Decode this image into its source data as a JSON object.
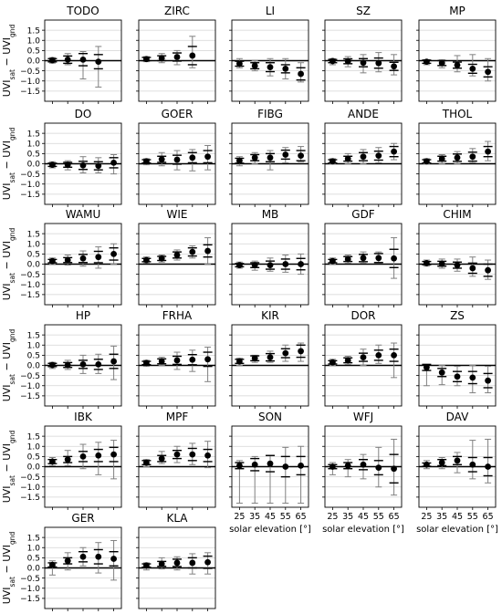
{
  "figure": {
    "ylabel_main": "UVI",
    "ylabel_sub1": "sat",
    "ylabel_mid": " − UVI",
    "ylabel_sub2": "gnd",
    "xlabel": "solar elevation [°]"
  },
  "chart_data": {
    "type": "scatter",
    "x": [
      25,
      35,
      45,
      55,
      65
    ],
    "x_ticks": [
      "25",
      "35",
      "45",
      "55",
      "65"
    ],
    "ylim": [
      -2,
      2
    ],
    "y_ticks": [
      1.5,
      1.0,
      0.5,
      0.0,
      -0.5,
      -1.0,
      -1.5
    ],
    "y_tick_labels": [
      "1.5",
      "1.0",
      "0.5",
      "0.0",
      "−0.5",
      "−1.0",
      "−1.5"
    ],
    "grid": "horizontal",
    "panels": [
      {
        "name": "TODO",
        "mean": [
          0.02,
          0.05,
          0.05,
          -0.05,
          null
        ],
        "std": [
          0.08,
          0.18,
          0.3,
          0.35,
          null
        ],
        "range": [
          [
            -0.12,
            0.15
          ],
          [
            -0.2,
            0.35
          ],
          [
            -0.9,
            0.45
          ],
          [
            -1.3,
            0.7
          ],
          null
        ]
      },
      {
        "name": "ZIRC",
        "mean": [
          0.08,
          0.12,
          0.18,
          0.25,
          null
        ],
        "std": [
          0.08,
          0.12,
          0.2,
          0.45,
          null
        ],
        "range": [
          [
            -0.05,
            0.2
          ],
          [
            -0.1,
            0.35
          ],
          [
            -0.2,
            0.5
          ],
          [
            -0.35,
            1.2
          ],
          null
        ]
      },
      {
        "name": "LI",
        "mean": [
          -0.15,
          -0.25,
          -0.32,
          -0.4,
          -0.65
        ],
        "std": [
          0.12,
          0.15,
          0.22,
          0.2,
          0.3
        ],
        "range": [
          [
            -0.35,
            0.1
          ],
          [
            -0.5,
            0.0
          ],
          [
            -0.75,
            0.1
          ],
          [
            -0.9,
            0.1
          ],
          [
            -1.05,
            -0.1
          ]
        ]
      },
      {
        "name": "SZ",
        "mean": [
          -0.02,
          -0.03,
          -0.1,
          -0.12,
          -0.28
        ],
        "std": [
          0.08,
          0.12,
          0.2,
          0.25,
          0.2
        ],
        "range": [
          [
            -0.2,
            0.1
          ],
          [
            -0.3,
            0.2
          ],
          [
            -0.6,
            0.3
          ],
          [
            -0.55,
            0.4
          ],
          [
            -0.7,
            0.3
          ]
        ]
      },
      {
        "name": "MP",
        "mean": [
          -0.05,
          -0.12,
          -0.22,
          -0.4,
          -0.55
        ],
        "std": [
          0.08,
          0.12,
          0.15,
          0.22,
          0.25
        ],
        "range": [
          [
            -0.2,
            0.05
          ],
          [
            -0.35,
            0.05
          ],
          [
            -0.55,
            0.25
          ],
          [
            -0.75,
            0.3
          ],
          [
            -1.0,
            0.1
          ]
        ]
      },
      {
        "name": "DO",
        "mean": [
          -0.05,
          -0.05,
          -0.08,
          -0.1,
          0.05
        ],
        "std": [
          0.08,
          0.12,
          0.2,
          0.2,
          0.25
        ],
        "range": [
          [
            -0.2,
            0.1
          ],
          [
            -0.3,
            0.15
          ],
          [
            -0.45,
            0.35
          ],
          [
            -0.45,
            0.3
          ],
          [
            -0.5,
            0.45
          ]
        ]
      },
      {
        "name": "GOER",
        "mean": [
          0.12,
          0.22,
          0.2,
          0.3,
          0.35
        ],
        "std": [
          0.08,
          0.15,
          0.22,
          0.25,
          0.3
        ],
        "range": [
          [
            -0.05,
            0.25
          ],
          [
            -0.1,
            0.55
          ],
          [
            -0.3,
            0.65
          ],
          [
            -0.35,
            0.7
          ],
          [
            -0.3,
            0.9
          ]
        ]
      },
      {
        "name": "FIBG",
        "mean": [
          0.15,
          0.3,
          0.3,
          0.45,
          0.4
        ],
        "std": [
          0.12,
          0.15,
          0.2,
          0.22,
          0.25
        ],
        "range": [
          [
            -0.1,
            0.35
          ],
          [
            0.0,
            0.55
          ],
          [
            -0.3,
            0.65
          ],
          [
            0.05,
            0.8
          ],
          [
            0.1,
            0.85
          ]
        ]
      },
      {
        "name": "ANDE",
        "mean": [
          0.12,
          0.25,
          0.35,
          0.4,
          0.6
        ],
        "std": [
          0.08,
          0.12,
          0.2,
          0.22,
          0.25
        ],
        "range": [
          [
            0.0,
            0.25
          ],
          [
            0.0,
            0.5
          ],
          [
            0.0,
            0.7
          ],
          [
            0.05,
            0.8
          ],
          [
            0.2,
            1.0
          ]
        ]
      },
      {
        "name": "THOL",
        "mean": [
          0.12,
          0.25,
          0.3,
          0.35,
          0.6
        ],
        "std": [
          0.08,
          0.12,
          0.18,
          0.22,
          0.25
        ],
        "range": [
          [
            0.0,
            0.25
          ],
          [
            0.0,
            0.45
          ],
          [
            0.0,
            0.6
          ],
          [
            0.05,
            0.75
          ],
          [
            0.15,
            1.1
          ]
        ]
      },
      {
        "name": "WAMU",
        "mean": [
          0.15,
          0.2,
          0.28,
          0.35,
          0.5
        ],
        "std": [
          0.08,
          0.12,
          0.2,
          0.28,
          0.3
        ],
        "range": [
          [
            0.0,
            0.3
          ],
          [
            -0.05,
            0.45
          ],
          [
            -0.1,
            0.65
          ],
          [
            -0.2,
            0.85
          ],
          [
            0.0,
            1.0
          ]
        ]
      },
      {
        "name": "WIE",
        "mean": [
          0.2,
          0.28,
          0.45,
          0.6,
          0.65
        ],
        "std": [
          0.08,
          0.1,
          0.15,
          0.2,
          0.3
        ],
        "range": [
          [
            0.05,
            0.35
          ],
          [
            0.1,
            0.45
          ],
          [
            0.2,
            0.7
          ],
          [
            0.3,
            0.9
          ],
          [
            0.0,
            1.3
          ]
        ]
      },
      {
        "name": "MB",
        "mean": [
          -0.05,
          -0.05,
          -0.05,
          0.0,
          0.0
        ],
        "std": [
          0.08,
          0.12,
          0.2,
          0.25,
          0.28
        ],
        "range": [
          [
            -0.2,
            0.1
          ],
          [
            -0.3,
            0.15
          ],
          [
            -0.35,
            0.3
          ],
          [
            -0.4,
            0.45
          ],
          [
            -0.5,
            0.5
          ]
        ]
      },
      {
        "name": "GDF",
        "mean": [
          0.15,
          0.25,
          0.3,
          0.3,
          0.28
        ],
        "std": [
          0.08,
          0.12,
          0.18,
          0.22,
          0.45
        ],
        "range": [
          [
            0.0,
            0.3
          ],
          [
            0.05,
            0.45
          ],
          [
            0.05,
            0.6
          ],
          [
            0.05,
            0.6
          ],
          [
            -0.7,
            1.3
          ]
        ]
      },
      {
        "name": "CHIM",
        "mean": [
          0.05,
          0.02,
          -0.05,
          -0.2,
          -0.3
        ],
        "std": [
          0.08,
          0.12,
          0.15,
          0.25,
          0.3
        ],
        "range": [
          [
            -0.1,
            0.2
          ],
          [
            -0.2,
            0.25
          ],
          [
            -0.35,
            0.25
          ],
          [
            -0.6,
            0.35
          ],
          [
            -0.75,
            0.2
          ]
        ]
      },
      {
        "name": "HP",
        "mean": [
          0.02,
          0.02,
          0.05,
          0.05,
          0.2
        ],
        "std": [
          0.08,
          0.12,
          0.2,
          0.25,
          0.35
        ],
        "range": [
          [
            -0.15,
            0.15
          ],
          [
            -0.2,
            0.25
          ],
          [
            -0.4,
            0.5
          ],
          [
            -0.4,
            0.55
          ],
          [
            -0.7,
            0.95
          ]
        ]
      },
      {
        "name": "FRHA",
        "mean": [
          0.12,
          0.2,
          0.25,
          0.28,
          0.3
        ],
        "std": [
          0.08,
          0.12,
          0.2,
          0.25,
          0.35
        ],
        "range": [
          [
            -0.05,
            0.25
          ],
          [
            0.0,
            0.4
          ],
          [
            -0.2,
            0.65
          ],
          [
            -0.3,
            0.75
          ],
          [
            -0.8,
            0.9
          ]
        ]
      },
      {
        "name": "KIR",
        "mean": [
          0.2,
          0.35,
          0.4,
          0.6,
          0.7
        ],
        "std": [
          0.1,
          0.12,
          0.18,
          0.22,
          0.3
        ],
        "range": [
          [
            0.0,
            0.35
          ],
          [
            0.15,
            0.5
          ],
          [
            0.15,
            0.7
          ],
          [
            0.2,
            1.0
          ],
          [
            0.2,
            1.1
          ]
        ]
      },
      {
        "name": "DOR",
        "mean": [
          0.15,
          0.25,
          0.4,
          0.5,
          0.5
        ],
        "std": [
          0.08,
          0.12,
          0.2,
          0.25,
          0.3
        ],
        "range": [
          [
            0.0,
            0.3
          ],
          [
            0.05,
            0.45
          ],
          [
            0.0,
            0.8
          ],
          [
            0.1,
            1.0
          ],
          [
            -0.6,
            1.1
          ]
        ]
      },
      {
        "name": "ZS",
        "mean": [
          -0.1,
          -0.35,
          -0.55,
          -0.6,
          -0.75
        ],
        "std": [
          0.15,
          0.2,
          0.25,
          0.3,
          0.35
        ],
        "range": [
          [
            -1.0,
            0.05
          ],
          [
            -0.95,
            0.0
          ],
          [
            -1.0,
            -0.05
          ],
          [
            -1.35,
            0.0
          ],
          [
            -1.35,
            -0.05
          ]
        ]
      },
      {
        "name": "IBK",
        "mean": [
          0.25,
          0.35,
          0.5,
          0.55,
          0.6
        ],
        "std": [
          0.1,
          0.15,
          0.25,
          0.3,
          0.35
        ],
        "range": [
          [
            0.05,
            0.45
          ],
          [
            0.05,
            0.8
          ],
          [
            -0.1,
            1.1
          ],
          [
            -0.4,
            1.2
          ],
          [
            -0.6,
            1.3
          ]
        ]
      },
      {
        "name": "MPF",
        "mean": [
          0.2,
          0.4,
          0.6,
          0.6,
          0.55
        ],
        "std": [
          0.1,
          0.15,
          0.2,
          0.3,
          0.3
        ],
        "range": [
          [
            0.0,
            0.35
          ],
          [
            0.15,
            0.75
          ],
          [
            0.2,
            1.0
          ],
          [
            0.1,
            1.15
          ],
          [
            -0.05,
            1.25
          ]
        ]
      },
      {
        "name": "SON",
        "mean": [
          0.05,
          0.1,
          0.15,
          0.0,
          0.05
        ],
        "std": [
          0.15,
          0.3,
          0.4,
          0.5,
          0.45
        ],
        "range": [
          [
            -1.8,
            0.3
          ],
          [
            -1.8,
            0.5
          ],
          [
            -1.8,
            0.55
          ],
          [
            -1.8,
            0.95
          ],
          [
            -1.8,
            1.0
          ]
        ]
      },
      {
        "name": "WFJ",
        "mean": [
          0.0,
          0.05,
          0.1,
          -0.05,
          -0.1
        ],
        "std": [
          0.1,
          0.15,
          0.25,
          0.35,
          0.7
        ],
        "range": [
          [
            -0.4,
            0.2
          ],
          [
            -0.5,
            0.35
          ],
          [
            -0.6,
            0.6
          ],
          [
            -1.0,
            0.95
          ],
          [
            -1.4,
            1.35
          ]
        ]
      },
      {
        "name": "DAV",
        "mean": [
          0.1,
          0.2,
          0.3,
          0.1,
          0.0
        ],
        "std": [
          0.08,
          0.15,
          0.2,
          0.35,
          0.45
        ],
        "range": [
          [
            -0.1,
            0.3
          ],
          [
            -0.1,
            0.45
          ],
          [
            -0.3,
            0.7
          ],
          [
            -0.6,
            1.3
          ],
          [
            -0.8,
            1.35
          ]
        ]
      },
      {
        "name": "GER",
        "mean": [
          0.15,
          0.35,
          0.55,
          0.55,
          0.45
        ],
        "std": [
          0.1,
          0.15,
          0.25,
          0.35,
          0.35
        ],
        "range": [
          [
            -0.35,
            0.35
          ],
          [
            -0.1,
            0.75
          ],
          [
            0.1,
            1.0
          ],
          [
            -0.25,
            1.25
          ],
          [
            -0.6,
            1.35
          ]
        ]
      },
      {
        "name": "KLA",
        "mean": [
          0.12,
          0.2,
          0.25,
          0.25,
          0.28
        ],
        "std": [
          0.08,
          0.12,
          0.18,
          0.25,
          0.3
        ],
        "range": [
          [
            -0.1,
            0.25
          ],
          [
            -0.05,
            0.5
          ],
          [
            -0.1,
            0.55
          ],
          [
            -0.3,
            0.7
          ],
          [
            -0.3,
            0.75
          ]
        ]
      }
    ]
  }
}
